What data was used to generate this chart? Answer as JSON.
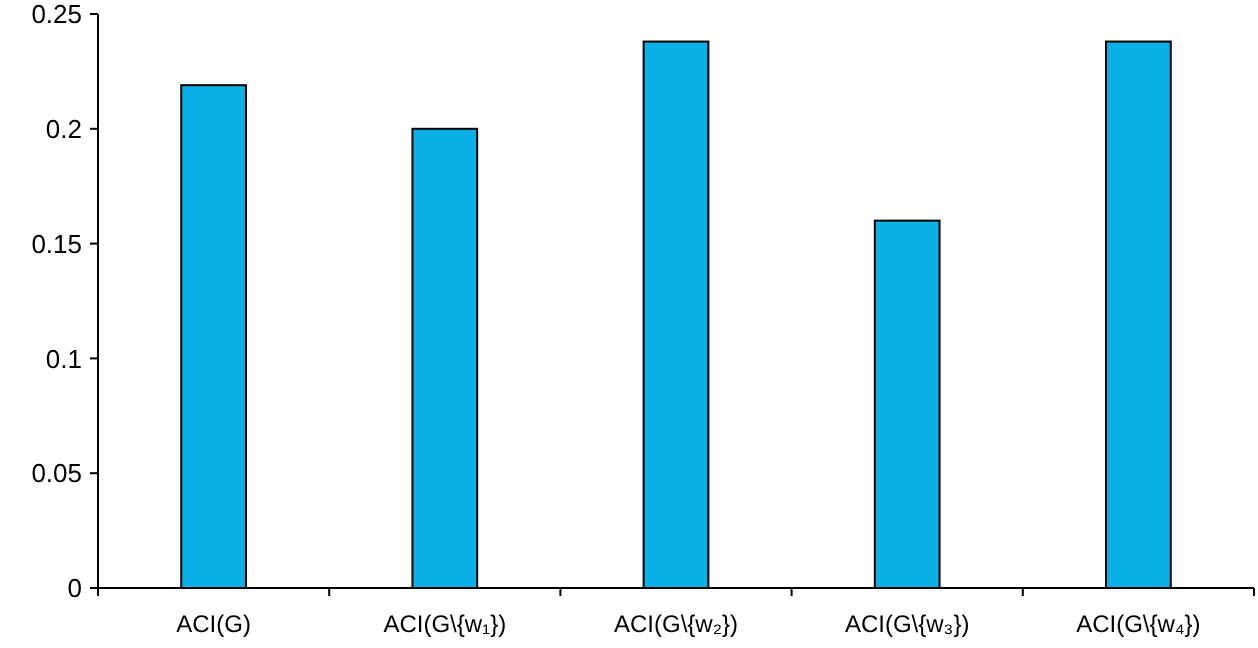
{
  "chart_data": {
    "type": "bar",
    "categories": [
      "ACI(G)",
      "ACI(G\\{w₁})",
      "ACI(G\\{w₂})",
      "ACI(G\\{w₃})",
      "ACI(G\\{w₄})"
    ],
    "values": [
      0.219,
      0.2,
      0.238,
      0.16,
      0.238
    ],
    "color": "#0bb0e6",
    "ylim": [
      0,
      0.25
    ],
    "yticks": [
      0,
      0.05,
      0.1,
      0.15,
      0.2,
      0.25
    ],
    "grid": false
  }
}
